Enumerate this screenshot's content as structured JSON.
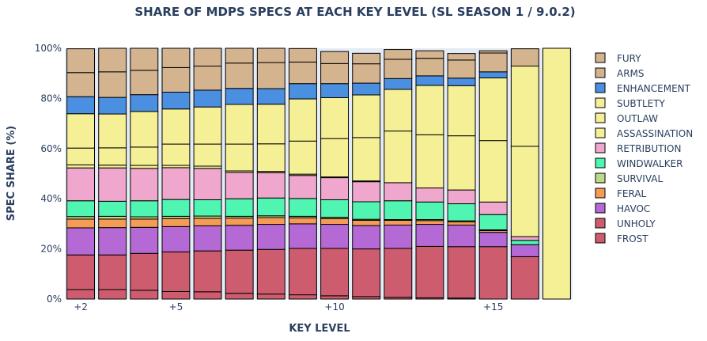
{
  "chart_data": {
    "type": "bar",
    "stacked": true,
    "title": "SHARE OF MDPS SPECS AT EACH KEY LEVEL (SL SEASON 1 / 9.0.2)",
    "xlabel": "KEY LEVEL",
    "ylabel": "SPEC SHARE (%)",
    "ylim": [
      0,
      100
    ],
    "y_tick_labels": [
      "0%",
      "20%",
      "40%",
      "60%",
      "80%",
      "100%"
    ],
    "x_tick_labels": [
      "+2",
      "+5",
      "+10",
      "+15"
    ],
    "x_tick_positions": [
      2,
      5,
      10,
      15
    ],
    "categories": [
      2,
      3,
      4,
      5,
      6,
      7,
      8,
      9,
      10,
      11,
      12,
      13,
      14,
      15,
      16,
      17
    ],
    "legend_position": "right",
    "series": [
      {
        "name": "FROST",
        "color": "#cd5c6e",
        "values": [
          3.8,
          3.8,
          3.5,
          3.0,
          2.9,
          2.3,
          2.0,
          1.7,
          1.3,
          1.0,
          0.7,
          0.5,
          0.4,
          0.0,
          0.0,
          0.0
        ]
      },
      {
        "name": "FROST",
        "color": "#cd5c6e",
        "values": [
          13.8,
          13.8,
          14.7,
          15.8,
          16.3,
          17.2,
          17.8,
          18.5,
          18.9,
          19.0,
          19.5,
          20.5,
          20.5,
          20.9,
          16.9,
          0.0
        ]
      },
      {
        "name": "UNHOLY",
        "color": "#cd5c6e",
        "values": [
          0,
          0,
          0,
          0,
          0,
          0,
          0,
          0,
          0,
          0,
          0,
          0,
          0,
          0,
          0,
          0
        ]
      },
      {
        "name": "HAVOC",
        "color": "#b469d4",
        "values": [
          10.8,
          10.9,
          10.4,
          10.1,
          10.0,
          9.9,
          10.0,
          9.8,
          9.6,
          9.3,
          9.3,
          8.8,
          8.6,
          5.7,
          4.8,
          0.0
        ]
      },
      {
        "name": "FERAL",
        "color": "#f49b55",
        "values": [
          3.5,
          3.4,
          3.3,
          3.2,
          3.0,
          2.9,
          2.7,
          2.4,
          2.3,
          2.1,
          1.9,
          1.5,
          1.3,
          0.7,
          0.0,
          0.0
        ]
      },
      {
        "name": "SURVIVAL",
        "color": "#bdd98a",
        "values": [
          1.0,
          1.1,
          0.9,
          0.9,
          0.9,
          0.7,
          0.7,
          0.6,
          0.5,
          0.4,
          0.3,
          0.4,
          0.4,
          0.3,
          0.0,
          0.0
        ]
      },
      {
        "name": "WINDWALKER",
        "color": "#4ff5b0",
        "values": [
          6.3,
          6.0,
          6.4,
          6.7,
          6.5,
          7.0,
          7.1,
          7.1,
          7.0,
          7.0,
          7.5,
          7.0,
          6.8,
          6.1,
          1.7,
          0.0
        ]
      },
      {
        "name": "RETRIBUTION",
        "color": "#f0a7cd",
        "values": [
          13.1,
          13.3,
          12.9,
          12.7,
          12.5,
          10.5,
          10.1,
          9.2,
          8.8,
          8.0,
          7.2,
          5.6,
          5.5,
          5.0,
          1.5,
          0.0
        ]
      },
      {
        "name": "ASSASSINATION",
        "color": "#f5f095",
        "values": [
          1.2,
          1.1,
          1.2,
          0.9,
          0.9,
          0.6,
          0.5,
          0.5,
          0.3,
          0.3,
          0.0,
          0.0,
          0.0,
          0.0,
          0.0,
          0.0
        ]
      },
      {
        "name": "OUTLAW",
        "color": "#f5f095",
        "values": [
          6.7,
          6.9,
          7.3,
          8.5,
          8.8,
          10.7,
          11.0,
          13.2,
          15.3,
          17.3,
          20.6,
          21.2,
          21.6,
          24.5,
          36.0,
          100.0
        ]
      },
      {
        "name": "SUBTLETY",
        "color": "#f5f095",
        "values": [
          13.7,
          13.5,
          14.2,
          14.0,
          14.8,
          15.8,
          15.8,
          16.8,
          16.3,
          17.0,
          16.6,
          19.7,
          20.0,
          25.0,
          32.0,
          0.0
        ]
      },
      {
        "name": "ENHANCEMENT",
        "color": "#4b8fe0",
        "values": [
          6.8,
          6.6,
          6.7,
          6.7,
          6.7,
          6.4,
          6.2,
          6.1,
          5.6,
          4.7,
          4.3,
          3.8,
          3.0,
          2.4,
          0.0,
          0.0
        ]
      },
      {
        "name": "ARMS",
        "color": "#d4b38f",
        "values": [
          9.6,
          10.2,
          9.7,
          9.8,
          9.6,
          10.1,
          10.4,
          8.6,
          8.0,
          7.7,
          7.7,
          7.0,
          7.2,
          7.5,
          0.0,
          0.0
        ]
      },
      {
        "name": "FURY",
        "color": "#d4b38f",
        "values": [
          9.5,
          9.4,
          8.8,
          7.7,
          7.1,
          5.9,
          5.7,
          5.4,
          4.8,
          4.2,
          3.9,
          3.0,
          2.6,
          0.9,
          6.9,
          0.0
        ]
      }
    ],
    "legend": [
      {
        "name": "FURY",
        "color": "#d4b38f"
      },
      {
        "name": "ARMS",
        "color": "#d4b38f"
      },
      {
        "name": "ENHANCEMENT",
        "color": "#4b8fe0"
      },
      {
        "name": "SUBTLETY",
        "color": "#f5f095"
      },
      {
        "name": "OUTLAW",
        "color": "#f5f095"
      },
      {
        "name": "ASSASSINATION",
        "color": "#f5f095"
      },
      {
        "name": "RETRIBUTION",
        "color": "#f0a7cd"
      },
      {
        "name": "WINDWALKER",
        "color": "#4ff5b0"
      },
      {
        "name": "SURVIVAL",
        "color": "#bdd98a"
      },
      {
        "name": "FERAL",
        "color": "#f49b55"
      },
      {
        "name": "HAVOC",
        "color": "#b469d4"
      },
      {
        "name": "UNHOLY",
        "color": "#cd5c6e"
      },
      {
        "name": "FROST",
        "color": "#cd5c6e"
      }
    ],
    "colors": {
      "plot_background": "#e5ecf6",
      "text": "#2a3f5f",
      "bar_outline": "#000000"
    }
  }
}
